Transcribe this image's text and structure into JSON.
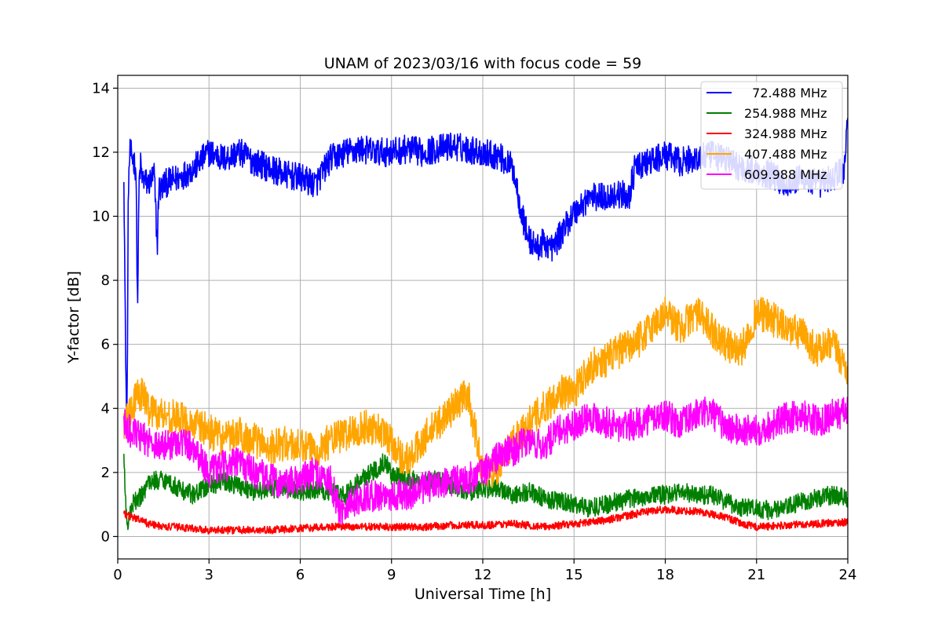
{
  "chart_data": {
    "type": "line",
    "title": "UNAM of 2023/03/16 with focus code = 59",
    "xlabel": "Universal Time [h]",
    "ylabel": "Y-factor [dB]",
    "xlim": [
      0,
      24
    ],
    "ylim": [
      -0.7,
      14.4
    ],
    "xticks": [
      0,
      3,
      6,
      9,
      12,
      15,
      18,
      21,
      24
    ],
    "yticks": [
      0,
      2,
      4,
      6,
      8,
      10,
      12,
      14
    ],
    "xtick_labels": [
      "0",
      "3",
      "6",
      "9",
      "12",
      "15",
      "18",
      "21",
      "24"
    ],
    "ytick_labels": [
      "0",
      "2",
      "4",
      "6",
      "8",
      "10",
      "12",
      "14"
    ],
    "grid": true,
    "legend_position": "top-right",
    "series": [
      {
        "name": "  72.488 MHz",
        "color": "#0000ff",
        "noise": 0.45,
        "x": [
          0.2,
          0.25,
          0.3,
          0.35,
          0.4,
          0.5,
          0.6,
          0.65,
          0.7,
          0.75,
          0.8,
          1.0,
          1.2,
          1.3,
          1.35,
          1.4,
          1.5,
          2.0,
          2.5,
          2.8,
          3.0,
          3.5,
          4.0,
          4.5,
          5.0,
          5.5,
          6.0,
          6.5,
          7.0,
          7.5,
          8.0,
          8.5,
          9.0,
          9.5,
          10.0,
          10.5,
          11.0,
          11.5,
          12.0,
          12.5,
          13.0,
          13.3,
          13.5,
          13.8,
          14.0,
          14.3,
          14.6,
          14.9,
          15.2,
          15.5,
          16.0,
          16.5,
          16.8,
          17.0,
          17.5,
          18.0,
          18.5,
          19.0,
          19.5,
          20.0,
          20.5,
          21.0,
          21.5,
          22.0,
          22.5,
          23.0,
          23.5,
          23.9,
          24.0
        ],
        "y": [
          11.5,
          6.5,
          3.0,
          11.0,
          12.0,
          11.8,
          11.5,
          7.0,
          11.0,
          11.6,
          11.2,
          11.0,
          11.3,
          9.0,
          11.0,
          10.8,
          11.0,
          11.2,
          11.5,
          11.8,
          12.0,
          11.8,
          12.0,
          11.7,
          11.5,
          11.3,
          11.2,
          11.0,
          11.8,
          12.0,
          12.1,
          12.0,
          12.0,
          12.1,
          12.0,
          12.1,
          12.2,
          12.1,
          12.0,
          11.9,
          11.5,
          10.0,
          9.3,
          9.0,
          9.2,
          9.0,
          9.5,
          10.0,
          10.3,
          10.6,
          10.6,
          10.7,
          10.6,
          11.5,
          11.7,
          11.9,
          11.7,
          11.8,
          11.9,
          11.8,
          11.5,
          11.4,
          11.3,
          11.0,
          11.2,
          11.0,
          11.2,
          11.5,
          13.5
        ]
      },
      {
        "name": "254.988 MHz",
        "color": "#008000",
        "noise": 0.3,
        "x": [
          0.2,
          0.3,
          0.5,
          0.8,
          1.0,
          1.5,
          2.0,
          2.5,
          3.0,
          3.5,
          4.0,
          4.5,
          5.0,
          5.5,
          6.0,
          6.5,
          7.0,
          7.5,
          8.0,
          8.5,
          8.8,
          9.0,
          9.5,
          10.0,
          10.5,
          11.0,
          11.5,
          12.0,
          12.5,
          13.0,
          13.5,
          14.0,
          14.5,
          15.0,
          15.5,
          16.0,
          16.5,
          17.0,
          17.5,
          18.0,
          18.5,
          19.0,
          19.5,
          20.0,
          20.5,
          21.0,
          21.5,
          22.0,
          22.5,
          23.0,
          23.5,
          24.0
        ],
        "y": [
          2.5,
          0.3,
          1.0,
          1.3,
          1.7,
          1.8,
          1.5,
          1.3,
          1.6,
          1.7,
          1.6,
          1.4,
          1.5,
          1.5,
          1.4,
          1.5,
          1.4,
          1.3,
          1.8,
          2.1,
          2.4,
          1.9,
          1.8,
          1.7,
          1.8,
          1.6,
          1.4,
          1.5,
          1.5,
          1.3,
          1.4,
          1.2,
          1.1,
          1.0,
          0.9,
          1.0,
          1.1,
          1.2,
          1.3,
          1.3,
          1.4,
          1.3,
          1.3,
          1.1,
          0.9,
          0.9,
          0.8,
          0.9,
          1.1,
          1.2,
          1.3,
          1.2
        ]
      },
      {
        "name": "324.988 MHz",
        "color": "#ff0000",
        "noise": 0.12,
        "x": [
          0.2,
          0.5,
          1.0,
          1.5,
          2.0,
          3.0,
          4.0,
          5.0,
          6.0,
          7.0,
          8.0,
          9.0,
          10.0,
          11.0,
          12.0,
          13.0,
          14.0,
          15.0,
          16.0,
          17.0,
          17.5,
          18.0,
          18.5,
          19.0,
          19.5,
          20.0,
          20.5,
          21.0,
          22.0,
          23.0,
          24.0
        ],
        "y": [
          0.7,
          0.6,
          0.4,
          0.3,
          0.3,
          0.2,
          0.2,
          0.2,
          0.25,
          0.3,
          0.3,
          0.3,
          0.3,
          0.35,
          0.35,
          0.4,
          0.3,
          0.4,
          0.5,
          0.7,
          0.8,
          0.85,
          0.8,
          0.8,
          0.7,
          0.6,
          0.4,
          0.3,
          0.35,
          0.4,
          0.45
        ]
      },
      {
        "name": "407.488 MHz",
        "color": "#ffa500",
        "noise": 0.55,
        "x": [
          0.2,
          0.5,
          0.8,
          1.0,
          1.5,
          2.0,
          2.5,
          3.0,
          3.5,
          4.0,
          4.5,
          5.0,
          5.5,
          6.0,
          6.5,
          7.0,
          7.5,
          8.0,
          8.5,
          9.0,
          9.3,
          9.6,
          10.0,
          10.5,
          11.0,
          11.5,
          11.8,
          12.0,
          12.5,
          13.0,
          13.5,
          14.0,
          14.5,
          15.0,
          15.5,
          16.0,
          16.5,
          17.0,
          17.5,
          18.0,
          18.5,
          19.0,
          19.5,
          20.0,
          20.5,
          21.0,
          21.5,
          22.0,
          22.5,
          23.0,
          23.5,
          24.0
        ],
        "y": [
          3.5,
          4.2,
          4.5,
          4.0,
          3.8,
          3.7,
          3.5,
          3.3,
          3.0,
          3.2,
          3.0,
          2.8,
          2.9,
          2.8,
          2.7,
          3.0,
          3.2,
          3.4,
          3.4,
          3.0,
          2.5,
          2.4,
          3.0,
          3.5,
          4.0,
          4.5,
          3.0,
          2.0,
          2.1,
          3.0,
          3.5,
          4.0,
          4.5,
          4.5,
          5.3,
          5.5,
          5.8,
          6.0,
          6.5,
          7.0,
          6.5,
          7.0,
          6.5,
          6.0,
          5.8,
          7.0,
          6.8,
          6.5,
          6.3,
          5.8,
          6.0,
          5.2
        ]
      },
      {
        "name": "609.988 MHz",
        "color": "#ff00ff",
        "noise": 0.5,
        "x": [
          0.2,
          0.5,
          1.0,
          1.5,
          2.0,
          2.5,
          3.0,
          3.5,
          4.0,
          4.5,
          5.0,
          5.5,
          6.0,
          6.5,
          7.0,
          7.3,
          7.5,
          8.0,
          8.5,
          9.0,
          9.5,
          10.0,
          10.5,
          11.0,
          11.5,
          12.0,
          12.5,
          13.0,
          13.5,
          14.0,
          14.5,
          15.0,
          15.5,
          16.0,
          16.5,
          17.0,
          17.5,
          18.0,
          18.5,
          19.0,
          19.5,
          20.0,
          20.5,
          21.0,
          21.5,
          22.0,
          22.5,
          23.0,
          23.5,
          24.0
        ],
        "y": [
          3.5,
          3.2,
          3.0,
          2.8,
          3.0,
          2.8,
          2.0,
          2.2,
          2.3,
          2.0,
          1.8,
          1.6,
          1.8,
          2.0,
          1.7,
          0.8,
          1.0,
          1.2,
          1.3,
          1.3,
          1.3,
          1.5,
          1.6,
          1.7,
          1.8,
          2.0,
          2.5,
          2.7,
          3.0,
          2.8,
          3.3,
          3.5,
          3.8,
          3.6,
          3.4,
          3.5,
          3.7,
          3.8,
          3.5,
          3.8,
          3.9,
          3.4,
          3.3,
          3.3,
          3.5,
          3.7,
          3.8,
          3.6,
          3.8,
          3.9
        ]
      }
    ]
  }
}
